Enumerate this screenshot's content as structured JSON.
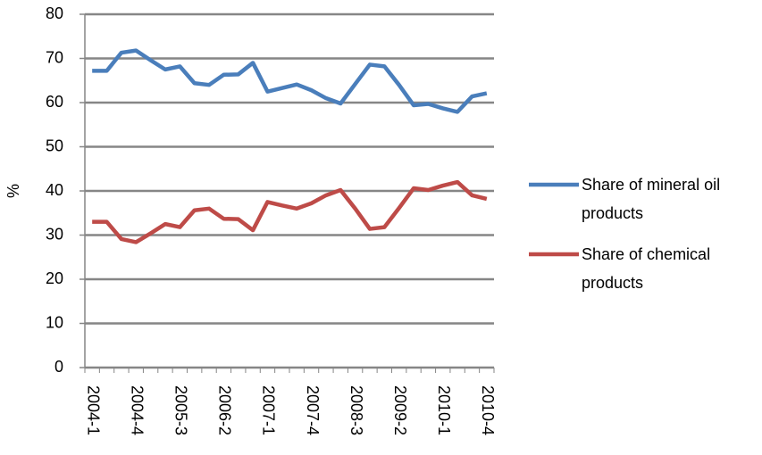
{
  "chart_data": {
    "type": "line",
    "y_label": "%",
    "categories": [
      "2004-1",
      null,
      null,
      "2004-4",
      null,
      null,
      "2005-3",
      null,
      null,
      "2006-2",
      null,
      null,
      "2007-1",
      null,
      null,
      "2007-4",
      null,
      null,
      "2008-3",
      null,
      null,
      "2009-2",
      null,
      null,
      "2010-1",
      null,
      null,
      "2010-4"
    ],
    "series": [
      {
        "name": "Share of mineral oil products",
        "color": "#4a7ebb",
        "values": [
          67.2,
          67.2,
          71.3,
          71.8,
          69.6,
          67.5,
          68.2,
          64.4,
          64.0,
          66.3,
          66.4,
          69.0,
          62.5,
          63.3,
          64.1,
          62.8,
          61.0,
          59.8,
          64.2,
          68.6,
          68.2,
          64.0,
          59.4,
          59.7,
          58.7,
          57.9,
          61.4,
          62.1
        ]
      },
      {
        "name": "Share of chemical products",
        "color": "#be4b48",
        "values": [
          33.0,
          33.0,
          29.1,
          28.4,
          30.4,
          32.5,
          31.8,
          35.6,
          36.0,
          33.7,
          33.6,
          31.1,
          37.5,
          36.7,
          36.0,
          37.2,
          39.0,
          40.2,
          36.0,
          31.4,
          31.8,
          36.1,
          40.6,
          40.2,
          41.2,
          42.0,
          39.0,
          38.2
        ]
      }
    ],
    "ylim": [
      0,
      80
    ],
    "yticks": [
      0,
      10,
      20,
      30,
      40,
      50,
      60,
      70,
      80
    ],
    "grid": true,
    "legend": "right"
  }
}
